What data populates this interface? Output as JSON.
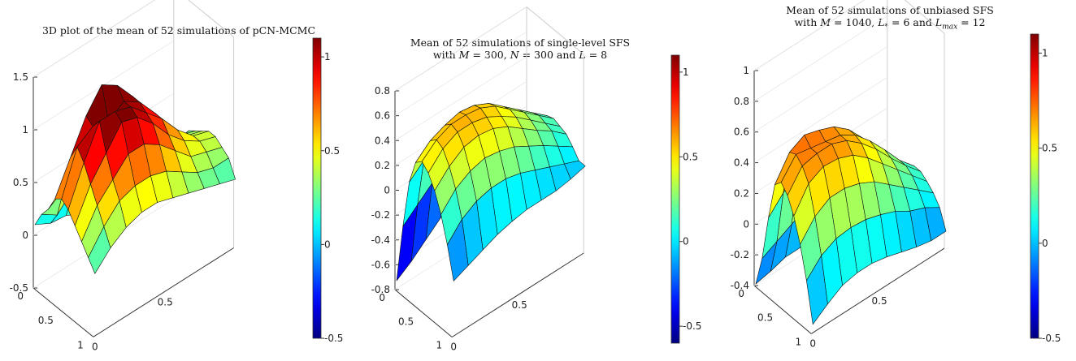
{
  "chart_data": [
    {
      "type": "surface",
      "title": "3D plot of the mean of 52 simulations of pCN-MCMC",
      "title_lines": [
        "3D plot of the mean of 52 simulations of pCN-MCMC"
      ],
      "x_ticks": [
        "0",
        "0.5",
        "1"
      ],
      "y_ticks": [
        "0",
        "0.5"
      ],
      "z_ticks": [
        "-0.5",
        "0",
        "0.5",
        "1",
        "1.5"
      ],
      "zlim": [
        -0.5,
        1.5
      ],
      "colorbar": {
        "ticks": [
          "-0.5",
          "0",
          "0.5",
          "1"
        ],
        "range": [
          -0.5,
          1.1
        ]
      },
      "colormap": "jet",
      "grid_size": [
        10,
        10
      ],
      "z": [
        [
          0.1,
          0.02,
          0.0,
          -0.08,
          -0.15,
          -0.2,
          -0.22,
          -0.18,
          -0.1,
          0.1
        ],
        [
          0.25,
          0.15,
          0.3,
          0.55,
          0.6,
          0.4,
          0.2,
          0.1,
          0.05,
          0.15
        ],
        [
          0.35,
          0.45,
          0.7,
          0.95,
          1.0,
          0.85,
          0.55,
          0.35,
          0.2,
          0.25
        ],
        [
          0.5,
          0.8,
          1.1,
          1.3,
          1.2,
          1.0,
          0.75,
          0.5,
          0.35,
          0.3
        ],
        [
          0.55,
          0.95,
          1.05,
          1.0,
          1.1,
          1.0,
          0.8,
          0.55,
          0.4,
          0.35
        ],
        [
          0.5,
          0.85,
          1.15,
          1.15,
          1.1,
          0.95,
          0.8,
          0.6,
          0.45,
          0.4
        ],
        [
          0.4,
          0.7,
          0.9,
          1.1,
          1.05,
          0.9,
          0.7,
          0.55,
          0.45,
          0.4
        ],
        [
          0.3,
          0.55,
          0.7,
          0.85,
          0.85,
          0.75,
          0.6,
          0.45,
          0.4,
          0.35
        ],
        [
          0.2,
          0.4,
          0.55,
          0.6,
          0.6,
          0.55,
          0.45,
          0.35,
          0.3,
          0.3
        ],
        [
          0.1,
          0.25,
          0.35,
          0.4,
          0.4,
          0.35,
          0.3,
          0.25,
          0.2,
          0.15
        ]
      ]
    },
    {
      "type": "surface",
      "title": "Mean of 52 simulations of single-level SFS with M = 300, N = 300 and L = 8",
      "title_lines": [
        "Mean of 52 simulations of single-level SFS",
        "with M = 300, N = 300 and L = 8"
      ],
      "x_ticks": [
        "0",
        "0.5",
        "1"
      ],
      "y_ticks": [
        "0",
        "0.5"
      ],
      "z_ticks": [
        "-0.8",
        "-0.6",
        "-0.4",
        "-0.2",
        "0",
        "0.2",
        "0.4",
        "0.6",
        "0.8"
      ],
      "zlim": [
        -0.8,
        0.8
      ],
      "colorbar": {
        "ticks": [
          "-0.5",
          "0",
          "0.5",
          "1"
        ],
        "range": [
          -0.6,
          1.1
        ]
      },
      "colormap": "jet",
      "grid_size": [
        10,
        10
      ],
      "z": [
        [
          -0.68,
          -0.6,
          -0.5,
          -0.4,
          -0.35,
          -0.3,
          -0.28,
          -0.25,
          -0.22,
          -0.2
        ],
        [
          -0.2,
          -0.1,
          0.0,
          0.05,
          0.1,
          0.08,
          0.05,
          0.0,
          -0.05,
          -0.1
        ],
        [
          0.2,
          0.3,
          0.4,
          0.45,
          0.45,
          0.4,
          0.3,
          0.2,
          0.1,
          0.05
        ],
        [
          0.4,
          0.5,
          0.55,
          0.58,
          0.56,
          0.5,
          0.4,
          0.3,
          0.2,
          0.1
        ],
        [
          0.45,
          0.55,
          0.6,
          0.6,
          0.58,
          0.52,
          0.42,
          0.32,
          0.22,
          0.12
        ],
        [
          0.4,
          0.52,
          0.58,
          0.58,
          0.55,
          0.48,
          0.4,
          0.3,
          0.2,
          0.1
        ],
        [
          0.3,
          0.42,
          0.5,
          0.52,
          0.5,
          0.44,
          0.35,
          0.26,
          0.18,
          0.08
        ],
        [
          0.15,
          0.28,
          0.35,
          0.38,
          0.36,
          0.32,
          0.25,
          0.18,
          0.1,
          0.02
        ],
        [
          -0.05,
          0.08,
          0.15,
          0.18,
          0.18,
          0.15,
          0.1,
          0.05,
          0.0,
          -0.05
        ],
        [
          -0.3,
          -0.25,
          -0.2,
          -0.15,
          -0.12,
          -0.1,
          -0.1,
          -0.1,
          -0.08,
          -0.05
        ]
      ]
    },
    {
      "type": "surface",
      "title": "Mean of 52 simulations of unbiased SFS with M = 1040, L* = 6 and Lmax = 12",
      "title_lines": [
        "Mean of 52 simulations of unbiased SFS",
        "with M = 1040, L* = 6 and Lmax = 12"
      ],
      "x_ticks": [
        "0",
        "0.5",
        "1"
      ],
      "y_ticks": [
        "0",
        "0.5"
      ],
      "z_ticks": [
        "-0.4",
        "-0.2",
        "0",
        "0.2",
        "0.4",
        "0.6",
        "0.8",
        "1"
      ],
      "zlim": [
        -0.4,
        1.0
      ],
      "colorbar": {
        "ticks": [
          "-0.5",
          "0",
          "0.5",
          "1"
        ],
        "range": [
          -0.5,
          1.1
        ]
      },
      "colormap": "jet",
      "grid_size": [
        10,
        10
      ],
      "z": [
        [
          -0.2,
          -0.18,
          -0.15,
          -0.15,
          -0.18,
          -0.2,
          -0.22,
          -0.25,
          -0.2,
          -0.1
        ],
        [
          0.0,
          0.05,
          0.1,
          0.15,
          0.1,
          0.05,
          0.0,
          -0.05,
          -0.05,
          0.0
        ],
        [
          0.3,
          0.4,
          0.5,
          0.55,
          0.5,
          0.4,
          0.3,
          0.2,
          0.1,
          0.05
        ],
        [
          0.55,
          0.7,
          0.75,
          0.72,
          0.68,
          0.6,
          0.48,
          0.35,
          0.22,
          0.12
        ],
        [
          0.6,
          0.72,
          0.7,
          0.68,
          0.66,
          0.6,
          0.5,
          0.38,
          0.25,
          0.15
        ],
        [
          0.55,
          0.68,
          0.7,
          0.7,
          0.66,
          0.58,
          0.48,
          0.36,
          0.25,
          0.15
        ],
        [
          0.45,
          0.6,
          0.65,
          0.64,
          0.6,
          0.52,
          0.42,
          0.32,
          0.22,
          0.12
        ],
        [
          0.3,
          0.42,
          0.48,
          0.48,
          0.45,
          0.4,
          0.32,
          0.24,
          0.16,
          0.08
        ],
        [
          0.1,
          0.2,
          0.25,
          0.26,
          0.25,
          0.22,
          0.18,
          0.12,
          0.08,
          0.02
        ],
        [
          -0.15,
          -0.08,
          -0.02,
          0.0,
          0.0,
          -0.02,
          -0.05,
          -0.08,
          -0.1,
          -0.1
        ]
      ]
    }
  ]
}
